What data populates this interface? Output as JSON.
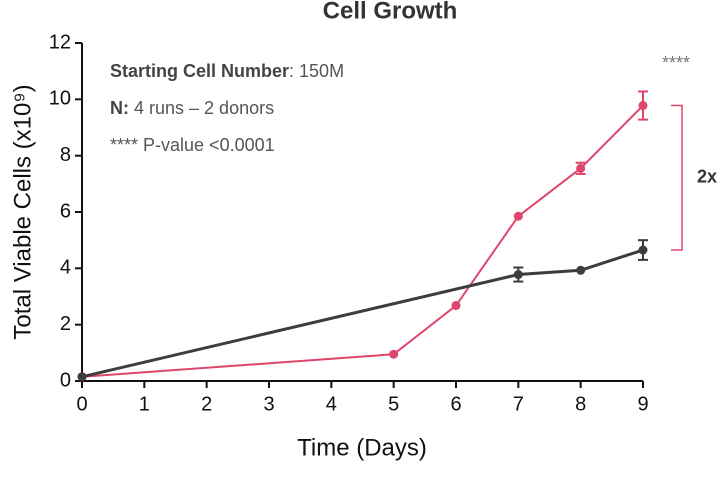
{
  "chart_data": {
    "type": "line",
    "title": "Cell Growth",
    "x_label": "Time (Days)",
    "y_label": "Total Viable Cells (x10⁹)",
    "xlim": [
      0,
      9
    ],
    "xticks": [
      0,
      1,
      2,
      3,
      4,
      5,
      6,
      7,
      8,
      9
    ],
    "ylim": [
      0,
      12
    ],
    "yticks": [
      0,
      2,
      4,
      6,
      8,
      10,
      12
    ],
    "grid": false,
    "series": [
      {
        "color": "#e0456b",
        "x": [
          0,
          5,
          6,
          7,
          8,
          9
        ],
        "values": [
          0.15,
          0.95,
          2.68,
          5.85,
          7.55,
          9.78
        ],
        "errors": [
          null,
          null,
          null,
          null,
          0.2,
          0.5
        ]
      },
      {
        "color": "#3d3d3d",
        "x": [
          0,
          7,
          8,
          9
        ],
        "values": [
          0.15,
          3.78,
          3.93,
          4.65
        ],
        "errors": [
          null,
          0.25,
          null,
          0.35
        ]
      }
    ],
    "annotations": [
      {
        "bold": "Starting Cell Number",
        "text": ": 150M"
      },
      {
        "bold": "N:",
        "text": " 4 runs – 2 donors"
      },
      {
        "text": "**** P-value <0.0001"
      }
    ],
    "significance": "****",
    "fold_label": "2x"
  }
}
